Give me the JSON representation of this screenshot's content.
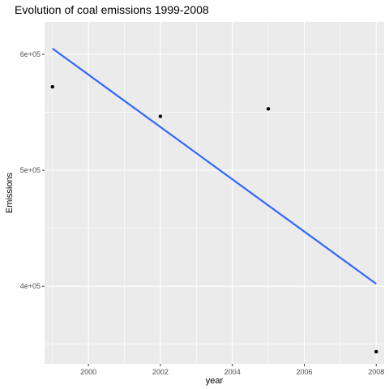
{
  "chart_data": {
    "type": "scatter",
    "title": "Evolution of coal emissions 1999-2008",
    "xlabel": "year",
    "ylabel": "Emissions",
    "xlim": [
      1998.78,
      2008.22
    ],
    "ylim": [
      333000,
      628000
    ],
    "x_ticks": [
      2000,
      2002,
      2004,
      2006,
      2008
    ],
    "x_tick_labels": [
      "2000",
      "2002",
      "2004",
      "2006",
      "2008"
    ],
    "y_ticks": [
      400000,
      500000,
      600000
    ],
    "y_tick_labels": [
      "4e+05",
      "5e+05",
      "6e+05"
    ],
    "points": [
      {
        "x": 1999,
        "y": 572000
      },
      {
        "x": 2002,
        "y": 546500
      },
      {
        "x": 2005,
        "y": 553000
      },
      {
        "x": 2008,
        "y": 343500
      }
    ],
    "trend_line": {
      "method": "linear",
      "x": [
        1999,
        2008
      ],
      "y": [
        605000,
        402000
      ]
    },
    "panel_background": "#ebebeb",
    "grid": true,
    "grid_color": "#ffffff",
    "point_color": "#000000",
    "line_color": "#3366ff"
  }
}
